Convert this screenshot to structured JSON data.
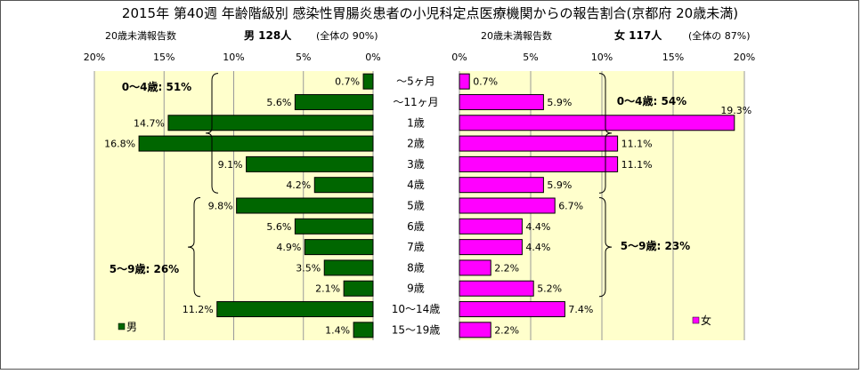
{
  "chart_data": {
    "type": "bar",
    "title": "2015年 第40週 年齢階級別 感染性胃腸炎患者の小児科定点医療機関からの報告割合(京都府 20歳未満)",
    "categories": [
      "～5ヶ月",
      "～11ヶ月",
      "1歳",
      "2歳",
      "3歳",
      "4歳",
      "5歳",
      "6歳",
      "7歳",
      "8歳",
      "9歳",
      "10～14歳",
      "15～19歳"
    ],
    "xlim": [
      0,
      20
    ],
    "tick_labels": [
      "0%",
      "5%",
      "10%",
      "15%",
      "20%"
    ],
    "grid": true,
    "series": [
      {
        "name": "男",
        "header_left": "20歳未満報告数",
        "header_count": "男 128人",
        "header_share": "(全体の 90%)",
        "color": "#006600",
        "values": [
          0.7,
          5.6,
          14.7,
          16.8,
          9.1,
          4.2,
          9.8,
          5.6,
          4.9,
          3.5,
          2.1,
          11.2,
          1.4
        ],
        "value_labels": [
          "0.7%",
          "5.6%",
          "14.7%",
          "16.8%",
          "9.1%",
          "4.2%",
          "9.8%",
          "5.6%",
          "4.9%",
          "3.5%",
          "2.1%",
          "11.2%",
          "1.4%"
        ],
        "brackets": [
          {
            "label": "0～4歳: 51%",
            "from": 0,
            "to": 5
          },
          {
            "label": "5～9歳: 26%",
            "from": 6,
            "to": 10
          }
        ]
      },
      {
        "name": "女",
        "header_left": "20歳未満報告数",
        "header_count": "女 117人",
        "header_share": "(全体の 87%)",
        "color": "#ff00ff",
        "values": [
          0.7,
          5.9,
          19.3,
          11.1,
          11.1,
          5.9,
          6.7,
          4.4,
          4.4,
          2.2,
          5.2,
          7.4,
          2.2
        ],
        "value_labels": [
          "0.7%",
          "5.9%",
          "19.3%",
          "11.1%",
          "11.1%",
          "5.9%",
          "6.7%",
          "4.4%",
          "4.4%",
          "2.2%",
          "5.2%",
          "7.4%",
          "2.2%"
        ],
        "brackets": [
          {
            "label": "0～4歳: 54%",
            "from": 0,
            "to": 5
          },
          {
            "label": "5～9歳: 23%",
            "from": 6,
            "to": 10
          }
        ]
      }
    ]
  }
}
